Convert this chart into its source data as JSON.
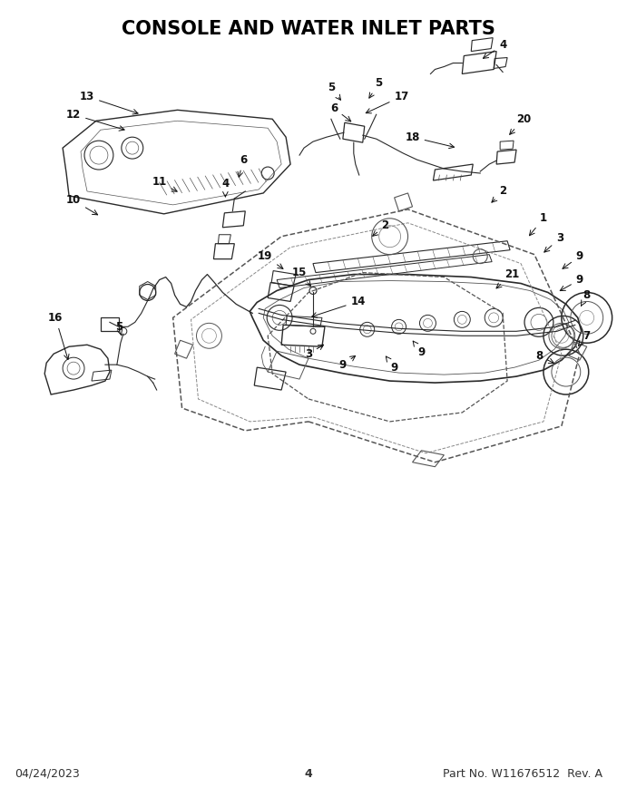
{
  "title": "CONSOLE AND WATER INLET PARTS",
  "title_fontsize": 15,
  "title_fontweight": "bold",
  "footer_left": "04/24/2023",
  "footer_center": "4",
  "footer_right": "Part No. W11676512  Rev. A",
  "footer_fontsize": 9,
  "bg_color": "#ffffff",
  "fig_width": 6.8,
  "fig_height": 8.8,
  "dpi": 100,
  "line_color": "#2a2a2a",
  "light_gray": "#888888",
  "mid_gray": "#555555"
}
